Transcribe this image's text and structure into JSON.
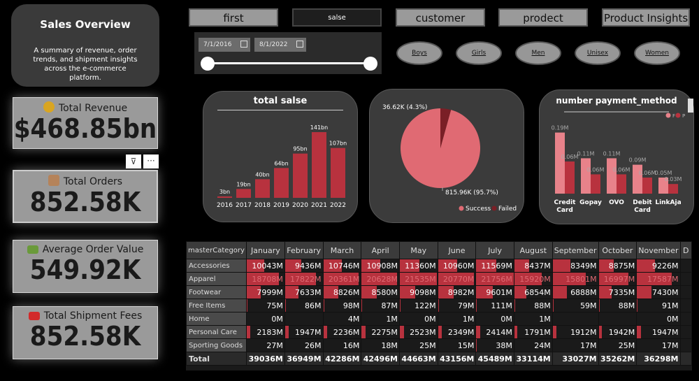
{
  "intro": {
    "title": "Sales Overview",
    "desc": "A summary of revenue, order trends, and shipment insights across the e-commerce platform."
  },
  "kpis": [
    {
      "label": "Total Revenue",
      "value": "$468.85bn",
      "icon": "money-bag-icon"
    },
    {
      "label": "Total Orders",
      "value": "852.58K",
      "icon": "box-icon"
    },
    {
      "label": "Average Order Value",
      "value": "549.92K",
      "icon": "cash-icon"
    },
    {
      "label": "Total Shipment Fees",
      "value": "852.58K",
      "icon": "truck-icon"
    }
  ],
  "tabs": [
    "first",
    "salse",
    "customer",
    "prodect",
    "Product Insights"
  ],
  "dates": {
    "start": "7/1/2016",
    "end": "8/1/2022"
  },
  "segments": [
    "Boys",
    "Girls",
    "Men",
    "Unisex",
    "Women"
  ],
  "colors": {
    "accent": "#b8323e",
    "pie_success": "#e06a73",
    "pie_failed": "#7a1f26",
    "light_bar": "#e8828a"
  },
  "chart_data": [
    {
      "type": "bar",
      "title": "total salse",
      "categories": [
        "2016",
        "2017",
        "2018",
        "2019",
        "2020",
        "2021",
        "2022"
      ],
      "values": [
        3,
        19,
        40,
        64,
        95,
        141,
        107
      ],
      "data_labels": [
        "3bn",
        "19bn",
        "40bn",
        "64bn",
        "95bn",
        "141bn",
        "107bn"
      ],
      "ylim": [
        0,
        150
      ]
    },
    {
      "type": "pie",
      "categories": [
        "Success",
        "Failed"
      ],
      "values": [
        815.96,
        36.62
      ],
      "data_labels": [
        "815.96K (95.7%)",
        "36.62K (4.3%)"
      ],
      "legend": "bottom-right"
    },
    {
      "type": "bar",
      "title": "number payment_method",
      "categories": [
        "Credit Card",
        "Gopay",
        "OVO",
        "Debit Card",
        "LinkAja"
      ],
      "series": [
        {
          "name": "F",
          "values": [
            0.19,
            0.11,
            0.11,
            0.09,
            0.05
          ]
        },
        {
          "name": "P",
          "values": [
            0.1,
            0.06,
            0.06,
            0.05,
            0.03
          ]
        }
      ],
      "data_labels": [
        "0.19M",
        "0.11M",
        "0.11M",
        "0.09M",
        "0.05M",
        "0.06M",
        "0.06M",
        "0.03M"
      ],
      "legend": "top-right"
    }
  ],
  "table": {
    "corner": "masterCategory",
    "months": [
      "January",
      "February",
      "March",
      "April",
      "May",
      "June",
      "July",
      "August",
      "September",
      "October",
      "November",
      "D"
    ],
    "rows": [
      {
        "name": "Accessories",
        "cells": [
          "10043M",
          "9436M",
          "10746M",
          "10908M",
          "11360M",
          "10960M",
          "11569M",
          "8437M",
          "8349M",
          "8875M",
          "9226M"
        ]
      },
      {
        "name": "Apparel",
        "cells": [
          "18708M",
          "17822M",
          "20361M",
          "20628M",
          "21535M",
          "20770M",
          "21756M",
          "15920M",
          "15801M",
          "16997M",
          "17587M"
        ]
      },
      {
        "name": "Footwear",
        "cells": [
          "7999M",
          "7633M",
          "8826M",
          "8580M",
          "9098M",
          "8982M",
          "9601M",
          "6854M",
          "6888M",
          "7335M",
          "7430M"
        ]
      },
      {
        "name": "Free Items",
        "cells": [
          "75M",
          "86M",
          "98M",
          "87M",
          "122M",
          "79M",
          "111M",
          "88M",
          "59M",
          "88M",
          "91M"
        ]
      },
      {
        "name": "Home",
        "cells": [
          "0M",
          "",
          "4M",
          "1M",
          "0M",
          "1M",
          "0M",
          "1M",
          "",
          "",
          "0M"
        ]
      },
      {
        "name": "Personal Care",
        "cells": [
          "2183M",
          "1947M",
          "2236M",
          "2275M",
          "2523M",
          "2349M",
          "2414M",
          "1791M",
          "1912M",
          "1942M",
          "1947M"
        ]
      },
      {
        "name": "Sporting Goods",
        "cells": [
          "27M",
          "26M",
          "16M",
          "18M",
          "25M",
          "15M",
          "38M",
          "24M",
          "17M",
          "25M",
          "17M"
        ]
      }
    ],
    "total": {
      "name": "Total",
      "cells": [
        "39036M",
        "36949M",
        "42286M",
        "42496M",
        "44663M",
        "43156M",
        "45489M",
        "33114M",
        "33027M",
        "35262M",
        "36298M"
      ]
    }
  }
}
